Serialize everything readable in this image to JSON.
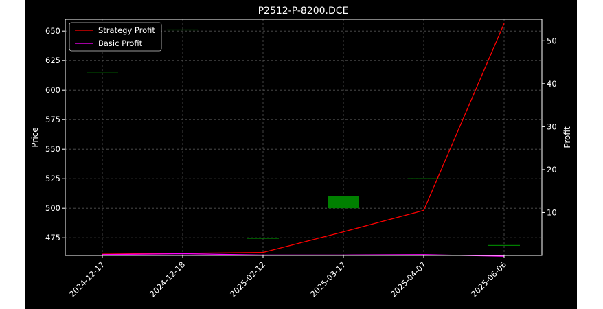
{
  "chart_data": {
    "type": "candlestick+line",
    "title": "P2512-P-8200.DCE",
    "ylabel_left": "Price",
    "ylabel_right": "Profit",
    "xlabel": "",
    "categories": [
      "2024-12-17",
      "2024-12-18",
      "2025-02-12",
      "2025-03-17",
      "2025-04-07",
      "2025-06-06"
    ],
    "ylim_left": [
      460,
      660
    ],
    "ylim_right": [
      0,
      55
    ],
    "yticks_left": [
      475,
      500,
      525,
      550,
      575,
      600,
      625,
      650
    ],
    "yticks_right": [
      10,
      20,
      30,
      40,
      50
    ],
    "grid": true,
    "legend_position": "top-left",
    "candles": [
      {
        "date": "2024-12-17",
        "open": 614.5,
        "high": 614.5,
        "low": 614.5,
        "close": 614.5
      },
      {
        "date": "2024-12-18",
        "open": 651,
        "high": 651,
        "low": 651,
        "close": 651
      },
      {
        "date": "2025-02-12",
        "open": 474.5,
        "high": 474.5,
        "low": 474.5,
        "close": 474.5
      },
      {
        "date": "2025-03-17",
        "open": 500,
        "high": 510,
        "low": 500,
        "close": 510
      },
      {
        "date": "2025-04-07",
        "open": 525,
        "high": 525,
        "low": 525,
        "close": 525
      },
      {
        "date": "2025-06-06",
        "open": 468.5,
        "high": 468.5,
        "low": 468.5,
        "close": 468.5
      }
    ],
    "series": [
      {
        "name": "Strategy Profit",
        "color": "#ff0000",
        "axis": "right",
        "values": [
          0.3,
          0.5,
          0.7,
          5.5,
          10.5,
          54
        ]
      },
      {
        "name": "Basic Profit",
        "color": "#ff00ff",
        "axis": "right",
        "values": [
          0.2,
          0.4,
          0.1,
          0.1,
          0.2,
          -0.2
        ]
      }
    ],
    "candle_colors": {
      "up": "#008000",
      "down": "#ff0000"
    },
    "grid_color": "#555555"
  }
}
